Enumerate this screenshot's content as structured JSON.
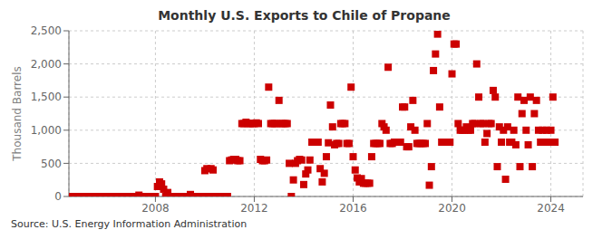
{
  "chart_data": {
    "type": "scatter",
    "title": "Monthly U.S. Exports to Chile of Propane",
    "y_label": "Thousand Barrels",
    "annotations": [
      "Source: U.S. Energy Information Administration"
    ],
    "color": "#cc0000",
    "marker": "square",
    "grid": true,
    "xlim": [
      2004.5,
      2025.3
    ],
    "xticks": [
      2008,
      2012,
      2016,
      2020,
      2024
    ],
    "ylim": [
      0,
      2500
    ],
    "yticks": [
      0,
      500,
      {
        "value": 1000,
        "label": "1,000"
      },
      {
        "value": 1500,
        "label": "1,500"
      },
      {
        "value": 2000,
        "label": "2,000"
      },
      {
        "value": 2500,
        "label": "2,500"
      }
    ],
    "x": [
      2004.583,
      2004.667,
      2004.75,
      2004.833,
      2004.917,
      2005.0,
      2005.083,
      2005.167,
      2005.25,
      2005.333,
      2005.417,
      2005.5,
      2005.583,
      2005.667,
      2005.75,
      2005.833,
      2005.917,
      2006.0,
      2006.083,
      2006.167,
      2006.25,
      2006.333,
      2006.417,
      2006.5,
      2006.583,
      2006.667,
      2006.75,
      2006.833,
      2006.917,
      2007.0,
      2007.083,
      2007.167,
      2007.25,
      2007.333,
      2007.417,
      2007.5,
      2007.583,
      2007.667,
      2007.75,
      2007.833,
      2007.917,
      2008.0,
      2008.083,
      2008.167,
      2008.25,
      2008.333,
      2008.417,
      2008.5,
      2008.583,
      2008.667,
      2008.75,
      2008.833,
      2008.917,
      2009.0,
      2009.083,
      2009.167,
      2009.25,
      2009.333,
      2009.417,
      2009.5,
      2009.583,
      2009.667,
      2009.75,
      2009.833,
      2009.917,
      2010.0,
      2010.083,
      2010.167,
      2010.25,
      2010.333,
      2010.417,
      2010.5,
      2010.583,
      2010.667,
      2010.75,
      2010.833,
      2010.917,
      2011.0,
      2011.083,
      2011.167,
      2011.25,
      2011.333,
      2011.417,
      2011.5,
      2011.583,
      2011.667,
      2011.75,
      2011.833,
      2011.917,
      2012.0,
      2012.083,
      2012.167,
      2012.25,
      2012.333,
      2012.417,
      2012.5,
      2012.583,
      2012.667,
      2012.75,
      2012.833,
      2012.917,
      2013.0,
      2013.083,
      2013.167,
      2013.25,
      2013.333,
      2013.417,
      2013.5,
      2013.583,
      2013.667,
      2013.75,
      2013.833,
      2013.917,
      2014.0,
      2014.083,
      2014.167,
      2014.25,
      2014.333,
      2014.417,
      2014.5,
      2014.583,
      2014.667,
      2014.75,
      2014.833,
      2014.917,
      2015.0,
      2015.083,
      2015.167,
      2015.25,
      2015.333,
      2015.417,
      2015.5,
      2015.583,
      2015.667,
      2015.75,
      2015.833,
      2015.917,
      2016.0,
      2016.083,
      2016.167,
      2016.25,
      2016.333,
      2016.417,
      2016.5,
      2016.583,
      2016.667,
      2016.75,
      2016.833,
      2016.917,
      2017.0,
      2017.083,
      2017.167,
      2017.25,
      2017.333,
      2017.417,
      2017.5,
      2017.583,
      2017.667,
      2017.75,
      2017.833,
      2017.917,
      2018.0,
      2018.083,
      2018.167,
      2018.25,
      2018.333,
      2018.417,
      2018.5,
      2018.583,
      2018.667,
      2018.75,
      2018.833,
      2018.917,
      2019.0,
      2019.083,
      2019.167,
      2019.25,
      2019.333,
      2019.417,
      2019.5,
      2019.583,
      2019.667,
      2019.75,
      2019.833,
      2019.917,
      2020.0,
      2020.083,
      2020.167,
      2020.25,
      2020.333,
      2020.417,
      2020.5,
      2020.583,
      2020.667,
      2020.75,
      2020.833,
      2020.917,
      2021.0,
      2021.083,
      2021.167,
      2021.25,
      2021.333,
      2021.417,
      2021.5,
      2021.583,
      2021.667,
      2021.75,
      2021.833,
      2021.917,
      2022.0,
      2022.083,
      2022.167,
      2022.25,
      2022.333,
      2022.417,
      2022.5,
      2022.583,
      2022.667,
      2022.75,
      2022.833,
      2022.917,
      2023.0,
      2023.083,
      2023.167,
      2023.25,
      2023.333,
      2023.417,
      2023.5,
      2023.583,
      2023.667,
      2023.75,
      2023.833,
      2023.917,
      2024.0,
      2024.083,
      2024.167
    ],
    "values": [
      0,
      0,
      0,
      0,
      0,
      0,
      0,
      0,
      0,
      0,
      0,
      0,
      0,
      0,
      0,
      0,
      0,
      0,
      0,
      0,
      0,
      0,
      0,
      0,
      0,
      0,
      0,
      0,
      0,
      0,
      0,
      0,
      0,
      20,
      0,
      0,
      0,
      0,
      0,
      0,
      0,
      0,
      150,
      220,
      190,
      110,
      0,
      60,
      0,
      0,
      0,
      0,
      0,
      0,
      0,
      0,
      0,
      0,
      30,
      0,
      0,
      0,
      0,
      0,
      0,
      390,
      420,
      0,
      420,
      400,
      0,
      0,
      0,
      0,
      0,
      0,
      0,
      540,
      550,
      560,
      560,
      540,
      540,
      1100,
      1100,
      1120,
      1100,
      1100,
      1100,
      1100,
      1110,
      1100,
      560,
      540,
      540,
      550,
      1650,
      1100,
      1100,
      1100,
      1100,
      1450,
      1100,
      1100,
      1100,
      1100,
      500,
      0,
      250,
      500,
      540,
      560,
      550,
      180,
      340,
      400,
      550,
      820,
      820,
      820,
      820,
      420,
      220,
      350,
      600,
      810,
      1380,
      1050,
      780,
      800,
      800,
      1100,
      1100,
      1100,
      800,
      800,
      1650,
      600,
      400,
      280,
      220,
      270,
      200,
      200,
      200,
      200,
      600,
      800,
      800,
      800,
      800,
      1100,
      1050,
      1000,
      1950,
      800,
      800,
      820,
      820,
      820,
      820,
      1350,
      1350,
      750,
      750,
      1050,
      1450,
      1000,
      800,
      800,
      800,
      800,
      800,
      1100,
      170,
      450,
      1900,
      2150,
      2450,
      1350,
      820,
      820,
      820,
      820,
      820,
      1850,
      2300,
      2300,
      1100,
      1000,
      1000,
      1000,
      1050,
      1000,
      1000,
      1100,
      1100,
      2000,
      1500,
      1100,
      1100,
      820,
      950,
      1100,
      1100,
      1600,
      1500,
      450,
      1050,
      820,
      1000,
      260,
      1050,
      820,
      820,
      1000,
      780,
      1500,
      450,
      1250,
      1450,
      1000,
      780,
      1500,
      450,
      1250,
      1450,
      1000,
      820,
      1000,
      820,
      1000,
      820,
      1000,
      1500,
      820
    ]
  }
}
